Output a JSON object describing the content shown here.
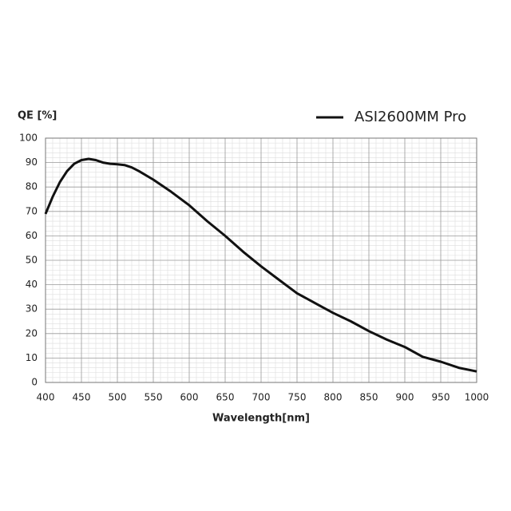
{
  "chart_data": {
    "type": "line",
    "y_label": "QE [%]",
    "x_label": "Wavelength[nm]",
    "series": [
      {
        "name": "ASI2600MM Pro",
        "color": "#111111",
        "x": [
          400,
          410,
          420,
          430,
          440,
          450,
          460,
          470,
          480,
          490,
          500,
          510,
          520,
          530,
          550,
          575,
          600,
          625,
          650,
          675,
          700,
          725,
          750,
          775,
          800,
          825,
          850,
          875,
          900,
          925,
          950,
          975,
          1000
        ],
        "values": [
          69,
          76,
          82,
          86.5,
          89.5,
          91,
          91.5,
          91,
          90,
          89.5,
          89.3,
          89,
          88,
          86.5,
          83,
          78,
          72.5,
          66,
          60,
          53.5,
          47.5,
          42,
          36.5,
          32.5,
          28.5,
          25,
          21,
          17.5,
          14.5,
          10.5,
          8.5,
          6,
          4.5
        ]
      }
    ],
    "xlim": [
      400,
      1000
    ],
    "xticks": [
      400,
      450,
      500,
      550,
      600,
      650,
      700,
      750,
      800,
      850,
      900,
      950,
      1000
    ],
    "ylim": [
      0,
      100
    ],
    "yticks": [
      0,
      10,
      20,
      30,
      40,
      50,
      60,
      70,
      80,
      90,
      100
    ],
    "grid": true,
    "legend": "top-right"
  }
}
